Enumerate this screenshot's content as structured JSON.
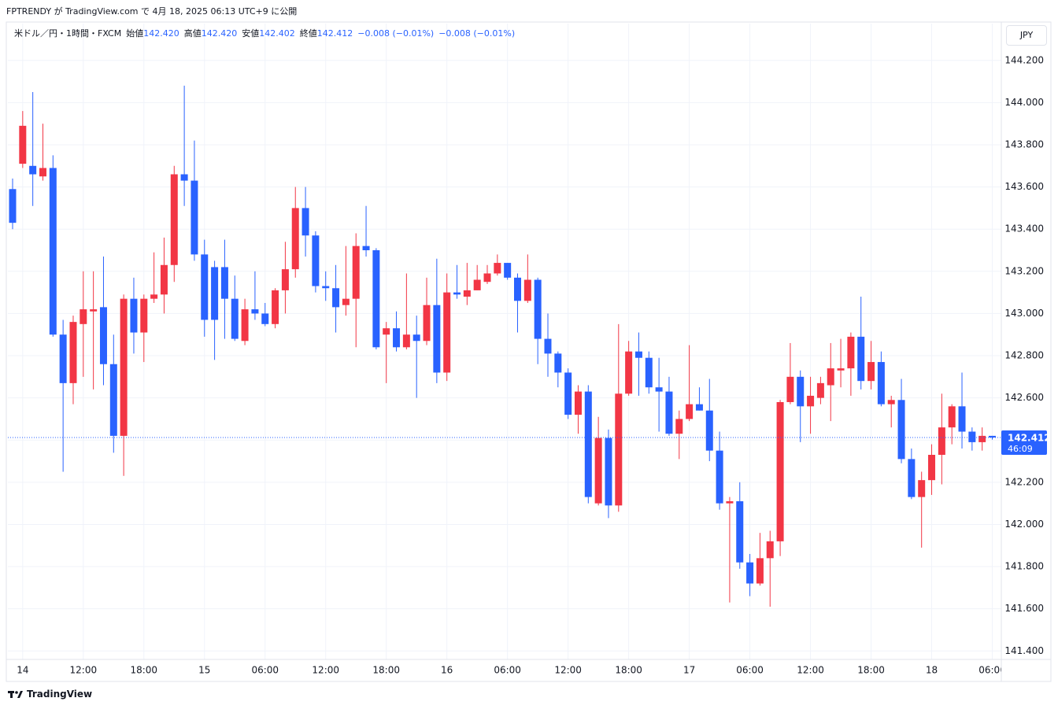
{
  "header": {
    "publisher": "FPTRENDY が TradingView.com で 4月 18, 2025 06:13 UTC+9 に公開"
  },
  "legend": {
    "symbol": "米ドル／円・1時間・FXCM",
    "open_label": "始値",
    "open": "142.420",
    "high_label": "高値",
    "high": "142.420",
    "low_label": "安値",
    "low": "142.402",
    "close_label": "終値",
    "close": "142.412",
    "change": "−0.008 (−0.01%)",
    "change2": "−0.008 (−0.01%)"
  },
  "currency": "JPY",
  "footer": "TradingView",
  "chart_data": {
    "type": "candlestick",
    "categories": [
      null,
      "14",
      null,
      null,
      null,
      null,
      null,
      "12:00",
      null,
      null,
      null,
      null,
      null,
      "18:00",
      null,
      null,
      null,
      null,
      null,
      "15",
      null,
      null,
      null,
      null,
      null,
      "06:00",
      null,
      null,
      null,
      null,
      null,
      "12:00",
      null,
      null,
      null,
      null,
      null,
      "18:00",
      null,
      null,
      null,
      null,
      null,
      "16",
      null,
      null,
      null,
      null,
      null,
      "06:00",
      null,
      null,
      null,
      null,
      null,
      "12:00",
      null,
      null,
      null,
      null,
      null,
      "18:00",
      null,
      null,
      null,
      null,
      null,
      "17",
      null,
      null,
      null,
      null,
      null,
      "06:00",
      null,
      null,
      null,
      null,
      null,
      "12:00",
      null,
      null,
      null,
      null,
      null,
      "18:00",
      null,
      null,
      null,
      null,
      null,
      "18",
      null,
      null,
      null,
      null,
      null,
      "06:00"
    ],
    "open": [
      143.59,
      143.71,
      143.7,
      143.65,
      143.69,
      142.9,
      142.67,
      142.95,
      143.01,
      143.03,
      142.76,
      142.42,
      143.07,
      142.91,
      143.07,
      143.09,
      143.23,
      143.66,
      143.63,
      143.28,
      143.22,
      143.22,
      143.07,
      142.87,
      143.02,
      143.0,
      142.95,
      143.11,
      143.21,
      143.5,
      143.37,
      143.13,
      143.12,
      143.04,
      143.07,
      143.32,
      143.3,
      142.9,
      142.93,
      142.84,
      142.9,
      142.87,
      143.04,
      142.72,
      143.1,
      143.08,
      143.11,
      143.15,
      143.19,
      143.24,
      143.17,
      143.06,
      143.16,
      142.88,
      142.81,
      142.72,
      142.52,
      142.63,
      142.1,
      142.41,
      142.09,
      142.62,
      142.82,
      142.79,
      142.65,
      142.63,
      142.43,
      142.5,
      142.57,
      142.54,
      142.35,
      142.1,
      142.11,
      141.82,
      141.72,
      141.84,
      141.92,
      142.58,
      142.7,
      142.56,
      142.6,
      142.66,
      142.73,
      142.74,
      142.89,
      142.68,
      142.77,
      142.57,
      142.59,
      142.31,
      142.13,
      142.21,
      142.33,
      142.46,
      142.56,
      142.44,
      142.39,
      142.42
    ],
    "high": [
      143.64,
      143.96,
      144.05,
      143.9,
      143.75,
      142.97,
      142.99,
      143.2,
      143.2,
      143.27,
      142.9,
      143.09,
      143.17,
      143.09,
      143.29,
      143.36,
      143.7,
      144.08,
      143.82,
      143.35,
      143.25,
      143.35,
      143.18,
      143.07,
      143.2,
      143.05,
      143.12,
      143.34,
      143.6,
      143.6,
      143.39,
      143.2,
      143.23,
      143.32,
      143.38,
      143.51,
      143.31,
      142.96,
      143.01,
      143.19,
      142.99,
      143.17,
      143.26,
      143.19,
      143.23,
      143.24,
      143.23,
      143.23,
      143.28,
      143.24,
      143.19,
      143.28,
      143.17,
      143.0,
      142.82,
      142.74,
      142.66,
      142.66,
      142.51,
      142.45,
      142.95,
      142.87,
      142.91,
      142.82,
      142.79,
      142.7,
      142.54,
      142.85,
      142.65,
      142.69,
      142.44,
      142.13,
      142.2,
      141.86,
      141.96,
      141.97,
      142.59,
      142.86,
      142.73,
      142.7,
      142.7,
      142.86,
      142.88,
      142.91,
      143.08,
      142.87,
      142.82,
      142.61,
      142.69,
      142.36,
      142.25,
      142.38,
      142.62,
      142.57,
      142.72,
      142.46,
      142.46,
      142.42
    ],
    "low": [
      143.4,
      143.69,
      143.51,
      143.63,
      142.89,
      142.25,
      142.57,
      142.7,
      142.64,
      142.66,
      142.34,
      142.23,
      142.81,
      142.77,
      143.05,
      143.0,
      143.15,
      143.51,
      143.25,
      142.89,
      142.78,
      142.88,
      142.87,
      142.85,
      142.97,
      142.94,
      142.93,
      143.0,
      143.17,
      143.27,
      143.1,
      143.06,
      142.91,
      142.99,
      142.84,
      143.27,
      142.83,
      142.67,
      142.82,
      142.83,
      142.6,
      142.85,
      142.67,
      142.68,
      143.07,
      143.04,
      143.11,
      143.14,
      143.18,
      143.16,
      142.91,
      143.05,
      142.76,
      142.7,
      142.65,
      142.5,
      142.43,
      142.1,
      142.09,
      142.03,
      142.06,
      142.61,
      142.61,
      142.62,
      142.44,
      142.42,
      142.31,
      142.49,
      142.54,
      142.3,
      142.07,
      141.63,
      141.79,
      141.66,
      141.71,
      141.61,
      141.85,
      142.57,
      142.39,
      142.43,
      142.57,
      142.49,
      142.65,
      142.61,
      142.64,
      142.64,
      142.56,
      142.46,
      142.29,
      142.12,
      141.89,
      142.14,
      142.19,
      142.38,
      142.36,
      142.35,
      142.35,
      142.402
    ],
    "close": [
      143.43,
      143.89,
      143.66,
      143.69,
      142.9,
      142.67,
      142.96,
      143.02,
      143.02,
      142.76,
      142.42,
      143.07,
      142.91,
      143.07,
      143.09,
      143.23,
      143.66,
      143.63,
      143.28,
      142.97,
      142.97,
      143.07,
      142.88,
      143.02,
      143.0,
      142.95,
      143.11,
      143.21,
      143.5,
      143.37,
      143.13,
      143.12,
      143.03,
      143.07,
      143.32,
      143.3,
      142.84,
      142.93,
      142.84,
      142.9,
      142.87,
      143.04,
      142.72,
      143.1,
      143.09,
      143.11,
      143.16,
      143.19,
      143.24,
      143.17,
      143.06,
      143.16,
      142.88,
      142.81,
      142.72,
      142.52,
      142.63,
      142.13,
      142.41,
      142.09,
      142.62,
      142.82,
      142.79,
      142.65,
      142.63,
      142.43,
      142.5,
      142.57,
      142.54,
      142.35,
      142.1,
      142.11,
      141.82,
      141.72,
      141.84,
      141.92,
      142.58,
      142.7,
      142.56,
      142.61,
      142.67,
      142.74,
      142.74,
      142.89,
      142.68,
      142.77,
      142.57,
      142.59,
      142.31,
      142.13,
      142.21,
      142.33,
      142.46,
      142.56,
      142.44,
      142.39,
      142.42,
      142.412
    ],
    "up_color": "#f23645",
    "down_color": "#2962ff",
    "ylim": [
      141.36,
      144.27
    ],
    "yticks": [
      {
        "value": 141.4,
        "label": "141.400"
      },
      {
        "value": 141.6,
        "label": "141.600"
      },
      {
        "value": 141.8,
        "label": "141.800"
      },
      {
        "value": 142.0,
        "label": "142.000"
      },
      {
        "value": 142.2,
        "label": "142.200"
      },
      {
        "value": 142.4,
        "label": "142.400"
      },
      {
        "value": 142.6,
        "label": "142.600"
      },
      {
        "value": 142.8,
        "label": "142.800"
      },
      {
        "value": 143.0,
        "label": "143.000"
      },
      {
        "value": 143.2,
        "label": "143.200"
      },
      {
        "value": 143.4,
        "label": "143.400"
      },
      {
        "value": 143.6,
        "label": "143.600"
      },
      {
        "value": 143.8,
        "label": "143.800"
      },
      {
        "value": 144.0,
        "label": "144.000"
      },
      {
        "value": 144.2,
        "label": "144.200"
      }
    ],
    "grid": true,
    "last_price": {
      "value": 142.412,
      "label": "142.412"
    },
    "countdown": "46:09"
  }
}
